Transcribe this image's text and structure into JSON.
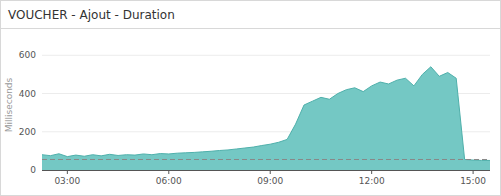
{
  "chart_data": {
    "type": "area",
    "title": "VOUCHER - Ajout - Duration",
    "y_label": "Milliseconds",
    "x": [
      2.25,
      2.5,
      2.75,
      3,
      3.25,
      3.5,
      3.75,
      4,
      4.25,
      4.5,
      4.75,
      5,
      5.25,
      5.5,
      5.75,
      6,
      6.25,
      6.5,
      6.75,
      7,
      7.25,
      7.5,
      7.75,
      8,
      8.25,
      8.5,
      8.75,
      9,
      9.25,
      9.5,
      9.75,
      10,
      10.25,
      10.5,
      10.75,
      11,
      11.25,
      11.5,
      11.75,
      12,
      12.25,
      12.5,
      12.75,
      13,
      13.25,
      13.5,
      13.75,
      14,
      14.25,
      14.5,
      14.75,
      15,
      15.25,
      15.5
    ],
    "values": [
      80,
      75,
      85,
      70,
      78,
      72,
      80,
      74,
      82,
      76,
      80,
      78,
      84,
      80,
      86,
      84,
      88,
      90,
      92,
      95,
      98,
      102,
      105,
      110,
      115,
      120,
      128,
      135,
      145,
      160,
      240,
      340,
      360,
      380,
      370,
      400,
      420,
      430,
      410,
      440,
      460,
      450,
      470,
      480,
      440,
      500,
      540,
      490,
      510,
      480,
      55,
      52,
      50,
      50
    ],
    "color": "#74c8c4",
    "reference_line": 55,
    "xlim": [
      2.25,
      15.5
    ],
    "xticks": [
      {
        "value": 3,
        "label": "03:00"
      },
      {
        "value": 6,
        "label": "06:00"
      },
      {
        "value": 9,
        "label": "09:00"
      },
      {
        "value": 12,
        "label": "12:00"
      },
      {
        "value": 15,
        "label": "15:00"
      }
    ],
    "ylim": [
      0,
      680
    ],
    "yticks": [
      0,
      200,
      400,
      600
    ],
    "grid": true
  }
}
